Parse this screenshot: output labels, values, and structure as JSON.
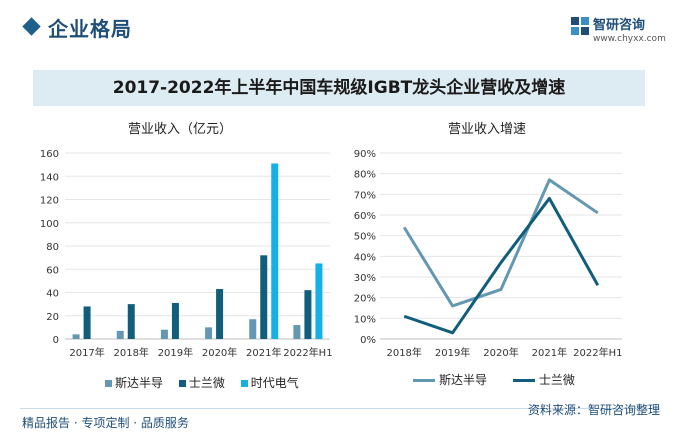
{
  "header": {
    "title": "企业格局"
  },
  "logo": {
    "name": "智研咨询",
    "url": "www.chyxx.com"
  },
  "main_title": "2017-2022年上半年中国车规级IGBT龙头企业营收及增速",
  "colors": {
    "sida": "#6497b1",
    "silan": "#115e7c",
    "catl": "#14b0e6"
  },
  "chart_data": [
    {
      "type": "bar",
      "title": "营业收入（亿元）",
      "categories": [
        "2017年",
        "2018年",
        "2019年",
        "2020年",
        "2021年",
        "2022年H1"
      ],
      "ylim": [
        0,
        160
      ],
      "yticks": [
        0,
        20,
        40,
        60,
        80,
        100,
        120,
        140,
        160
      ],
      "series": [
        {
          "name": "斯达半导",
          "values": [
            4,
            7,
            8,
            10,
            17,
            12
          ]
        },
        {
          "name": "士兰微",
          "values": [
            28,
            30,
            31,
            43,
            72,
            42
          ]
        },
        {
          "name": "时代电气",
          "values": [
            null,
            null,
            null,
            null,
            151,
            65
          ]
        }
      ],
      "legend": "bottom"
    },
    {
      "type": "line",
      "title": "营业收入增速",
      "categories": [
        "2018年",
        "2019年",
        "2020年",
        "2021年",
        "2022年H1"
      ],
      "ylim": [
        0,
        90
      ],
      "yticks": [
        "0%",
        "10%",
        "20%",
        "30%",
        "40%",
        "50%",
        "60%",
        "70%",
        "80%",
        "90%"
      ],
      "series": [
        {
          "name": "斯达半导",
          "values": [
            54,
            16,
            24,
            77,
            61
          ]
        },
        {
          "name": "士兰微",
          "values": [
            11,
            3,
            37,
            68,
            26
          ]
        }
      ],
      "legend": "bottom"
    }
  ],
  "footer": {
    "left": "精品报告 · 专项定制 · 品质服务",
    "source": "资料来源：智研咨询整理"
  }
}
